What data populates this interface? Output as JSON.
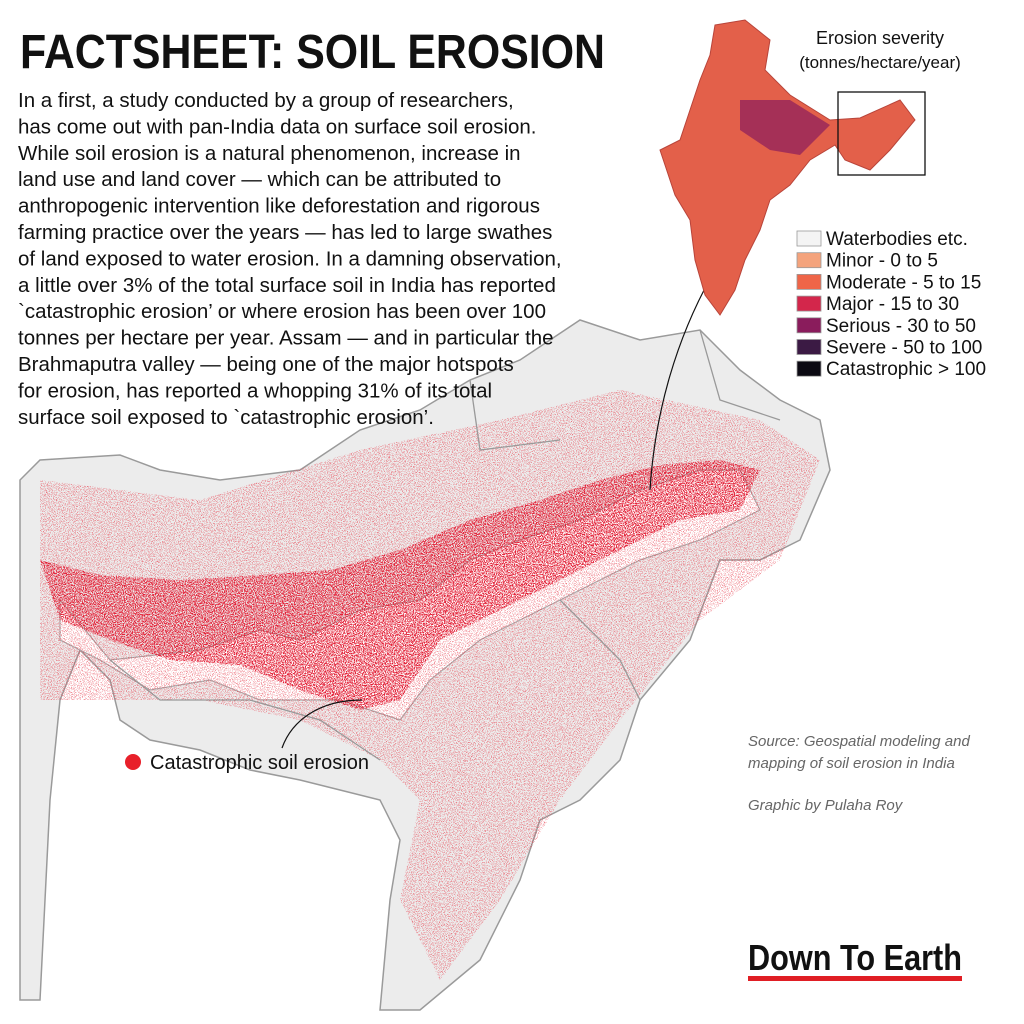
{
  "header": {
    "title": "FACTSHEET: SOIL EROSION"
  },
  "body": {
    "lines": [
      "In a first, a study conducted by a group of researchers,",
      "has come out with pan-India data on surface soil erosion.",
      "While soil erosion is a natural phenomenon, increase in",
      "land use and land cover — which can be attributed to",
      "anthropogenic intervention like deforestation and rigorous",
      "farming practice over the years — has led to large swathes",
      "of land exposed to water erosion. In a damning observation,",
      "a little over 3% of the total surface soil in India has reported",
      "`catastrophic erosion’ or where erosion has been over 100",
      "tonnes per hectare per year. Assam — and in particular the",
      "Brahmaputra valley — being one of the major hotspots",
      "for erosion, has reported a whopping 31% of its total",
      "surface soil exposed to `catastrophic erosion’."
    ]
  },
  "legend": {
    "title": "Erosion severity",
    "subtitle": "(tonnes/hectare/year)",
    "items": [
      {
        "label": "Waterbodies etc.",
        "color": "#f4f4f4"
      },
      {
        "label": "Minor - 0 to 5",
        "color": "#f4a37c"
      },
      {
        "label": "Moderate - 5 to 15",
        "color": "#ef6548"
      },
      {
        "label": "Major - 15 to 30",
        "color": "#d3264b"
      },
      {
        "label": "Serious - 30 to 50",
        "color": "#8a1c5c"
      },
      {
        "label": "Severe - 50 to 100",
        "color": "#3b1a44"
      },
      {
        "label": "Catastrophic > 100",
        "color": "#0b0912"
      }
    ]
  },
  "map": {
    "marker_label": "Catastrophic soil erosion",
    "marker_color": "#e8202a"
  },
  "source": {
    "lines": [
      "Source:  Geospatial modeling and",
      "mapping of soil erosion in India"
    ],
    "credit": "Graphic by Pulaha Roy"
  },
  "brand": "Down To Earth"
}
